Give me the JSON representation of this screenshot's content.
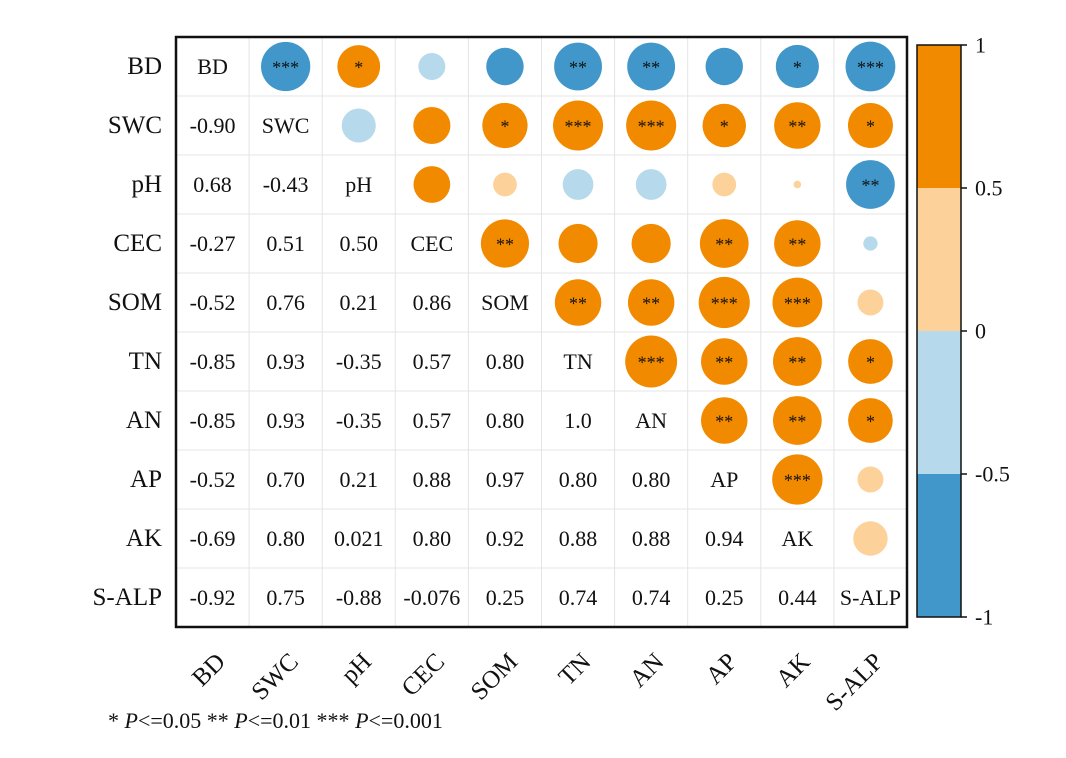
{
  "chart_data": {
    "type": "heatmap",
    "variables": [
      "BD",
      "SWC",
      "pH",
      "CEC",
      "SOM",
      "TN",
      "AN",
      "AP",
      "AK",
      "S-ALP"
    ],
    "lower_values": [
      [
        null,
        null,
        null,
        null,
        null,
        null,
        null,
        null,
        null,
        null
      ],
      [
        "-0.90",
        null,
        null,
        null,
        null,
        null,
        null,
        null,
        null,
        null
      ],
      [
        "0.68",
        "-0.43",
        null,
        null,
        null,
        null,
        null,
        null,
        null,
        null
      ],
      [
        "-0.27",
        "0.51",
        "0.50",
        null,
        null,
        null,
        null,
        null,
        null,
        null
      ],
      [
        "-0.52",
        "0.76",
        "0.21",
        "0.86",
        null,
        null,
        null,
        null,
        null,
        null
      ],
      [
        "-0.85",
        "0.93",
        "-0.35",
        "0.57",
        "0.80",
        null,
        null,
        null,
        null,
        null
      ],
      [
        "-0.85",
        "0.93",
        "-0.35",
        "0.57",
        "0.80",
        "1.0",
        null,
        null,
        null,
        null
      ],
      [
        "-0.52",
        "0.70",
        "0.21",
        "0.88",
        "0.97",
        "0.80",
        "0.80",
        null,
        null,
        null
      ],
      [
        "-0.69",
        "0.80",
        "0.021",
        "0.80",
        "0.92",
        "0.88",
        "0.88",
        "0.94",
        null,
        null
      ],
      [
        "-0.92",
        "0.75",
        "-0.88",
        "-0.076",
        "0.25",
        "0.74",
        "0.74",
        "0.25",
        "0.44",
        null
      ]
    ],
    "significance": [
      [
        "",
        "***",
        "*",
        "",
        "",
        "**",
        "**",
        "",
        "*",
        "***"
      ],
      [
        "",
        "",
        "",
        "",
        "*",
        "***",
        "***",
        "*",
        "**",
        "*"
      ],
      [
        "",
        "",
        "",
        "",
        "",
        "",
        "",
        "",
        "",
        "**"
      ],
      [
        "",
        "",
        "",
        "",
        "**",
        "",
        "",
        "**",
        "**",
        ""
      ],
      [
        "",
        "",
        "",
        "",
        "",
        "**",
        "**",
        "***",
        "***",
        ""
      ],
      [
        "",
        "",
        "",
        "",
        "",
        "",
        "***",
        "**",
        "**",
        "*"
      ],
      [
        "",
        "",
        "",
        "",
        "",
        "",
        "",
        "**",
        "**",
        "*"
      ],
      [
        "",
        "",
        "",
        "",
        "",
        "",
        "",
        "",
        "***",
        ""
      ],
      [
        "",
        "",
        "",
        "",
        "",
        "",
        "",
        "",
        "",
        ""
      ],
      [
        "",
        "",
        "",
        "",
        "",
        "",
        "",
        "",
        "",
        ""
      ]
    ],
    "colorbar": {
      "range": [
        -1,
        1
      ],
      "tick_labels": [
        "1",
        "0.5",
        "0",
        "-0.5",
        "-1"
      ],
      "bins": [
        {
          "from": 0.5,
          "to": 1,
          "color": "#f28a00"
        },
        {
          "from": 0,
          "to": 0.5,
          "color": "#fdd19a"
        },
        {
          "from": -0.5,
          "to": 0,
          "color": "#b6d9eb"
        },
        {
          "from": -1,
          "to": -0.5,
          "color": "#4197c9"
        }
      ]
    },
    "footnote": [
      "* ",
      "P",
      "<=0.05  ** ",
      "P",
      "<=0.01  *** ",
      "P",
      "<=0.001"
    ]
  }
}
